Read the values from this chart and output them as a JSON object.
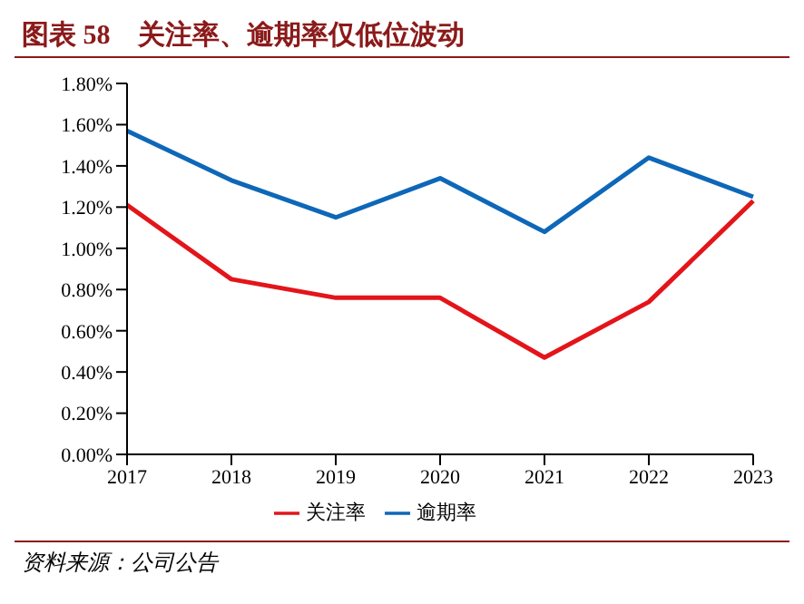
{
  "chart_data": {
    "type": "line",
    "title": "图表 58　关注率、逾期率仅低位波动",
    "categories": [
      "2017",
      "2018",
      "2019",
      "2020",
      "2021",
      "2022",
      "2023"
    ],
    "series": [
      {
        "name": "关注率",
        "color": "#e3151a",
        "values": [
          1.21,
          0.85,
          0.76,
          0.76,
          0.47,
          0.74,
          1.23
        ]
      },
      {
        "name": "逾期率",
        "color": "#0e67b8",
        "values": [
          1.57,
          1.33,
          1.15,
          1.34,
          1.08,
          1.44,
          1.25
        ]
      }
    ],
    "ylim": [
      0,
      1.8
    ],
    "yticks": [
      {
        "value": 0,
        "label": "0.00%"
      },
      {
        "value": 0.2,
        "label": "0.20%"
      },
      {
        "value": 0.4,
        "label": "0.40%"
      },
      {
        "value": 0.6,
        "label": "0.60%"
      },
      {
        "value": 0.8,
        "label": "0.80%"
      },
      {
        "value": 1.0,
        "label": "1.00%"
      },
      {
        "value": 1.2,
        "label": "1.20%"
      },
      {
        "value": 1.4,
        "label": "1.40%"
      },
      {
        "value": 1.6,
        "label": "1.60%"
      },
      {
        "value": 1.8,
        "label": "1.80%"
      }
    ],
    "grid": false,
    "legend": "bottom",
    "marker": "none",
    "line_style": "solid",
    "annotations": [
      "资料来源：公司公告"
    ]
  }
}
